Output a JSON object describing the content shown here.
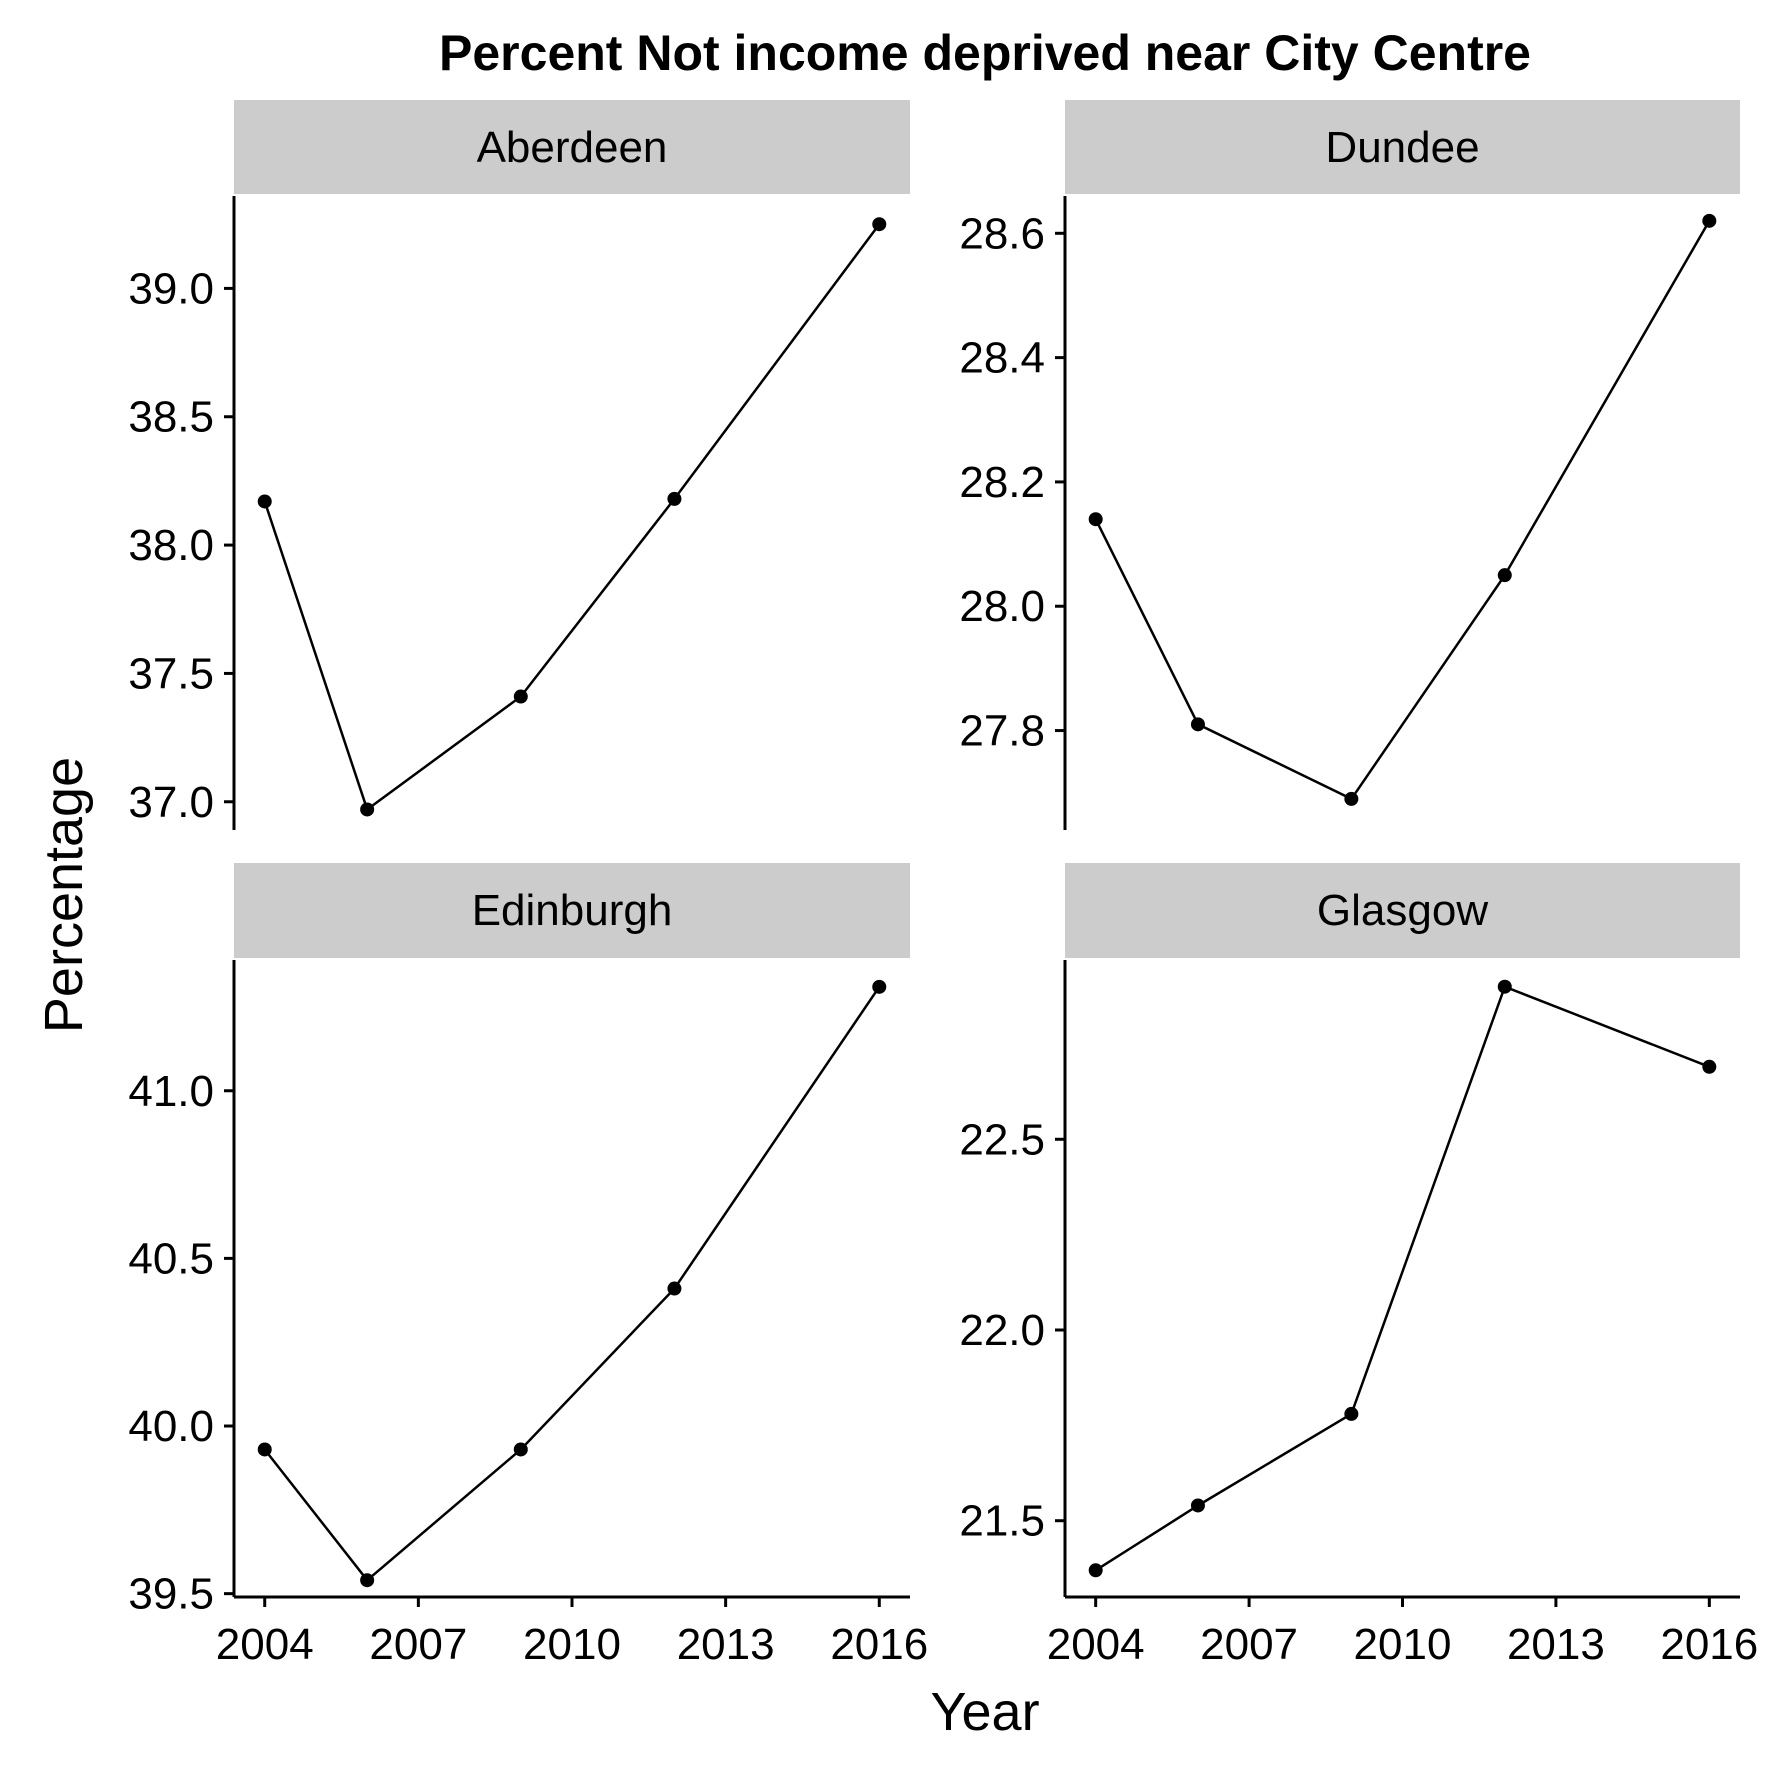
{
  "colors": {
    "strip": "#cccccc",
    "line": "#000000",
    "point": "#000000",
    "background": "#ffffff"
  },
  "chart_data": {
    "type": "line",
    "title": "Percent Not income deprived near City Centre",
    "xlabel": "Year",
    "ylabel": "Percentage",
    "x_ticks": [
      2004,
      2007,
      2010,
      2013,
      2016
    ],
    "xlim": [
      2003.4,
      2016.6
    ],
    "grid": false,
    "legend": "none",
    "facets": [
      {
        "name": "Aberdeen",
        "x": [
          2004,
          2006,
          2009,
          2012,
          2016
        ],
        "y": [
          38.17,
          36.97,
          37.41,
          38.18,
          39.25
        ],
        "ylim": [
          36.89,
          39.36
        ],
        "y_ticks": [
          37.0,
          37.5,
          38.0,
          38.5,
          39.0
        ],
        "y_tick_labels": [
          "37.0",
          "37.5",
          "38.0",
          "38.5",
          "39.0"
        ]
      },
      {
        "name": "Dundee",
        "x": [
          2004,
          2006,
          2009,
          2012,
          2016
        ],
        "y": [
          28.14,
          27.81,
          27.69,
          28.05,
          28.62
        ],
        "ylim": [
          27.64,
          28.66
        ],
        "y_ticks": [
          27.8,
          28.0,
          28.2,
          28.4,
          28.6
        ],
        "y_tick_labels": [
          "27.8",
          "28.0",
          "28.2",
          "28.4",
          "28.6"
        ]
      },
      {
        "name": "Edinburgh",
        "x": [
          2004,
          2006,
          2009,
          2012,
          2016
        ],
        "y": [
          39.93,
          39.54,
          39.93,
          40.41,
          41.31
        ],
        "ylim": [
          39.49,
          41.39
        ],
        "y_ticks": [
          39.5,
          40.0,
          40.5,
          41.0
        ],
        "y_tick_labels": [
          "39.5",
          "40.0",
          "40.5",
          "41.0"
        ]
      },
      {
        "name": "Glasgow",
        "x": [
          2004,
          2006,
          2009,
          2012,
          2016
        ],
        "y": [
          21.37,
          21.54,
          21.78,
          22.9,
          22.69
        ],
        "ylim": [
          21.3,
          22.97
        ],
        "y_ticks": [
          21.5,
          22.0,
          22.5
        ],
        "y_tick_labels": [
          "21.5",
          "22.0",
          "22.5"
        ]
      }
    ]
  }
}
